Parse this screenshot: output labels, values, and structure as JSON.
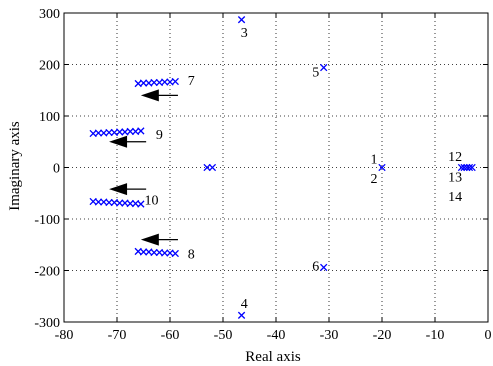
{
  "chart_data": {
    "type": "scatter",
    "xlabel": "Real axis",
    "ylabel": "Imaginary axis",
    "xlim": [
      -80,
      0
    ],
    "ylim": [
      -300,
      300
    ],
    "xticks": [
      -80,
      -70,
      -60,
      -50,
      -40,
      -30,
      -20,
      -10,
      0
    ],
    "yticks": [
      -300,
      -200,
      -100,
      0,
      100,
      200,
      300
    ],
    "grid": "dotted",
    "marker": "x",
    "marker_color": "#0000ff",
    "series": [
      {
        "points": [
          [
            -46.5,
            287
          ],
          [
            -46.5,
            -287
          ],
          [
            -31,
            194
          ],
          [
            -31,
            -194
          ],
          [
            -53,
            0
          ],
          [
            -52,
            0
          ],
          [
            -20,
            0
          ],
          [
            -5,
            0
          ],
          [
            -4.5,
            0
          ],
          [
            -4,
            0
          ],
          [
            -3.5,
            0
          ],
          [
            -3,
            0
          ],
          [
            -66,
            163
          ],
          [
            -65,
            164
          ],
          [
            -64,
            164
          ],
          [
            -63,
            165
          ],
          [
            -62,
            165
          ],
          [
            -61,
            166
          ],
          [
            -60,
            166
          ],
          [
            -59,
            167
          ],
          [
            -66,
            -163
          ],
          [
            -65,
            -164
          ],
          [
            -64,
            -164
          ],
          [
            -63,
            -165
          ],
          [
            -62,
            -165
          ],
          [
            -61,
            -166
          ],
          [
            -60,
            -166
          ],
          [
            -59,
            -167
          ],
          [
            -74.5,
            66
          ],
          [
            -73.5,
            67
          ],
          [
            -72.5,
            67
          ],
          [
            -71.5,
            68
          ],
          [
            -70.5,
            68
          ],
          [
            -69.5,
            69
          ],
          [
            -68.5,
            69
          ],
          [
            -67.5,
            70
          ],
          [
            -66.5,
            70
          ],
          [
            -65.5,
            71
          ],
          [
            -74.5,
            -66
          ],
          [
            -73.5,
            -67
          ],
          [
            -72.5,
            -67
          ],
          [
            -71.5,
            -68
          ],
          [
            -70.5,
            -68
          ],
          [
            -69.5,
            -69
          ],
          [
            -68.5,
            -69
          ],
          [
            -67.5,
            -70
          ],
          [
            -66.5,
            -70
          ],
          [
            -65.5,
            -71
          ]
        ]
      }
    ],
    "annotations": [
      {
        "text": "1",
        "x": -21.5,
        "y": 17
      },
      {
        "text": "2",
        "x": -21.5,
        "y": -20
      },
      {
        "text": "3",
        "x": -46.0,
        "y": 263
      },
      {
        "text": "4",
        "x": -46.0,
        "y": -263
      },
      {
        "text": "5",
        "x": -32.5,
        "y": 186
      },
      {
        "text": "6",
        "x": -32.5,
        "y": -190
      },
      {
        "text": "7",
        "x": -56.0,
        "y": 170
      },
      {
        "text": "8",
        "x": -56.0,
        "y": -167
      },
      {
        "text": "9",
        "x": -62.0,
        "y": 65
      },
      {
        "text": "10",
        "x": -63.5,
        "y": -62
      },
      {
        "text": "12",
        "x": -6.2,
        "y": 22
      },
      {
        "text": "13",
        "x": -6.2,
        "y": -17
      },
      {
        "text": "14",
        "x": -6.2,
        "y": -55
      }
    ],
    "arrows": [
      {
        "from": [
          -58.5,
          140
        ],
        "to": [
          -65.5,
          140
        ]
      },
      {
        "from": [
          -58.5,
          -140
        ],
        "to": [
          -65.5,
          -140
        ]
      },
      {
        "from": [
          -64.5,
          50
        ],
        "to": [
          -71.5,
          50
        ]
      },
      {
        "from": [
          -64.5,
          -42
        ],
        "to": [
          -71.5,
          -42
        ]
      }
    ]
  }
}
